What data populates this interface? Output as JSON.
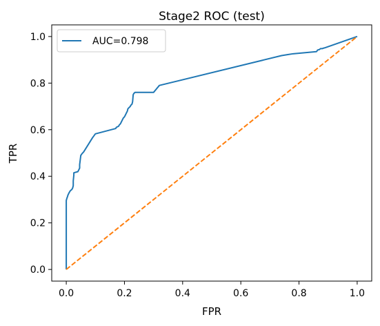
{
  "chart_data": {
    "type": "line",
    "title": "Stage2 ROC (test)",
    "xlabel": "FPR",
    "ylabel": "TPR",
    "xlim": [
      -0.05,
      1.05
    ],
    "ylim": [
      -0.05,
      1.05
    ],
    "xticks": [
      0.0,
      0.2,
      0.4,
      0.6,
      0.8,
      1.0
    ],
    "yticks": [
      0.0,
      0.2,
      0.4,
      0.6,
      0.8,
      1.0
    ],
    "xtick_labels": [
      "0.0",
      "0.2",
      "0.4",
      "0.6",
      "0.8",
      "1.0"
    ],
    "ytick_labels": [
      "0.0",
      "0.2",
      "0.4",
      "0.6",
      "0.8",
      "1.0"
    ],
    "grid": false,
    "legend": {
      "placement": "upper-left",
      "entries": [
        "AUC=0.798"
      ]
    },
    "series": [
      {
        "name": "AUC=0.798",
        "color": "#1f77b4",
        "style": "solid",
        "x": [
          0.0,
          0.0,
          0.002,
          0.004,
          0.006,
          0.008,
          0.01,
          0.012,
          0.014,
          0.016,
          0.018,
          0.02,
          0.022,
          0.024,
          0.024,
          0.026,
          0.026,
          0.04,
          0.042,
          0.044,
          0.046,
          0.046,
          0.05,
          0.052,
          0.054,
          0.06,
          0.07,
          0.08,
          0.09,
          0.1,
          0.17,
          0.172,
          0.18,
          0.182,
          0.186,
          0.188,
          0.192,
          0.196,
          0.2,
          0.202,
          0.206,
          0.21,
          0.212,
          0.216,
          0.22,
          0.222,
          0.226,
          0.228,
          0.23,
          0.232,
          0.236,
          0.3,
          0.31,
          0.32,
          0.74,
          0.76,
          0.78,
          0.86,
          0.862,
          0.864,
          0.87,
          0.874,
          0.88,
          0.884,
          0.89,
          1.0
        ],
        "y": [
          0.0,
          0.296,
          0.305,
          0.312,
          0.32,
          0.325,
          0.33,
          0.334,
          0.338,
          0.34,
          0.342,
          0.345,
          0.35,
          0.36,
          0.38,
          0.405,
          0.415,
          0.42,
          0.425,
          0.43,
          0.435,
          0.45,
          0.49,
          0.493,
          0.497,
          0.505,
          0.525,
          0.545,
          0.565,
          0.582,
          0.605,
          0.61,
          0.615,
          0.62,
          0.625,
          0.63,
          0.64,
          0.65,
          0.655,
          0.66,
          0.67,
          0.68,
          0.69,
          0.695,
          0.7,
          0.705,
          0.71,
          0.72,
          0.75,
          0.755,
          0.76,
          0.76,
          0.775,
          0.79,
          0.918,
          0.922,
          0.926,
          0.935,
          0.938,
          0.942,
          0.944,
          0.948,
          0.948,
          0.95,
          0.952,
          1.0
        ]
      },
      {
        "name": "",
        "color": "#ff7f0e",
        "style": "dashed",
        "x": [
          0.0,
          1.0
        ],
        "y": [
          0.0,
          1.0
        ]
      }
    ]
  }
}
